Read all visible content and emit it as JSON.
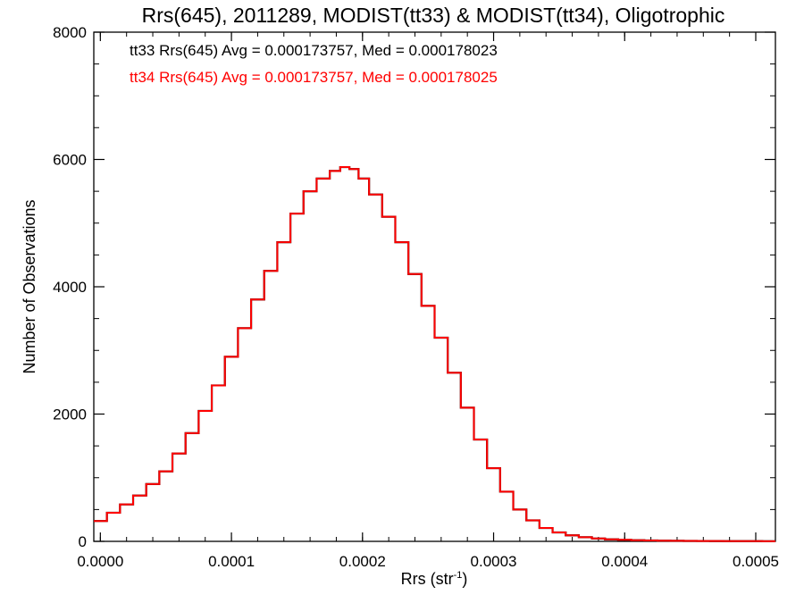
{
  "chart_data": {
    "type": "line",
    "style": "histogram-step",
    "title": "Rrs(645), 2011289, MODIST(tt33) & MODIST(tt34), Oligotrophic",
    "xlabel_main": "Rrs (str",
    "xlabel_sup": "-1",
    "xlabel_close": ")",
    "ylabel": "Number of Observations",
    "xlim": [
      -5e-06,
      0.000515
    ],
    "ylim": [
      0,
      8000
    ],
    "x_ticks": [
      0.0,
      0.0001,
      0.0002,
      0.0003,
      0.0004,
      0.0005
    ],
    "x_tick_labels": [
      "0.0000",
      "0.0001",
      "0.0002",
      "0.0003",
      "0.0004",
      "0.0005"
    ],
    "y_ticks": [
      0,
      2000,
      4000,
      6000,
      8000
    ],
    "y_tick_labels": [
      "0",
      "2000",
      "4000",
      "6000",
      "8000"
    ],
    "annotations": [
      {
        "text": "tt33 Rrs(645) Avg = 0.000173757, Med = 0.000178023",
        "color": "#000000"
      },
      {
        "text": "tt34 Rrs(645) Avg = 0.000173757, Med = 0.000178025",
        "color": "#ff0000"
      }
    ],
    "series": [
      {
        "color": "#000000",
        "x": [
          -5e-06,
          5e-06,
          1.5e-05,
          2.5e-05,
          3.5e-05,
          4.5e-05,
          5.5e-05,
          6.5e-05,
          7.5e-05,
          8.5e-05,
          9.5e-05,
          0.000105,
          0.000115,
          0.000125,
          0.000135,
          0.000145,
          0.000155,
          0.000165,
          0.000175,
          0.000183,
          0.00019,
          0.000197,
          0.000205,
          0.000215,
          0.000225,
          0.000235,
          0.000245,
          0.000255,
          0.000265,
          0.000275,
          0.000285,
          0.000295,
          0.000305,
          0.000315,
          0.000325,
          0.000335,
          0.000345,
          0.000355,
          0.000365,
          0.000375,
          0.000385,
          0.000395,
          0.000405,
          0.000415,
          0.000425,
          0.000435,
          0.000445,
          0.000455,
          0.000465,
          0.000475,
          0.000485,
          0.000495,
          0.000505,
          0.000515
        ],
        "values": [
          320,
          450,
          580,
          720,
          900,
          1100,
          1380,
          1700,
          2050,
          2450,
          2900,
          3350,
          3800,
          4250,
          4700,
          5150,
          5500,
          5700,
          5820,
          5880,
          5850,
          5700,
          5450,
          5100,
          4700,
          4200,
          3700,
          3200,
          2650,
          2100,
          1600,
          1150,
          780,
          500,
          330,
          210,
          140,
          95,
          65,
          45,
          32,
          24,
          18,
          14,
          11,
          9,
          7,
          6,
          5,
          4,
          3,
          3,
          2,
          2
        ]
      },
      {
        "color": "#ff0000",
        "x": [
          -5e-06,
          5e-06,
          1.5e-05,
          2.5e-05,
          3.5e-05,
          4.5e-05,
          5.5e-05,
          6.5e-05,
          7.5e-05,
          8.5e-05,
          9.5e-05,
          0.000105,
          0.000115,
          0.000125,
          0.000135,
          0.000145,
          0.000155,
          0.000165,
          0.000175,
          0.000183,
          0.00019,
          0.000197,
          0.000205,
          0.000215,
          0.000225,
          0.000235,
          0.000245,
          0.000255,
          0.000265,
          0.000275,
          0.000285,
          0.000295,
          0.000305,
          0.000315,
          0.000325,
          0.000335,
          0.000345,
          0.000355,
          0.000365,
          0.000375,
          0.000385,
          0.000395,
          0.000405,
          0.000415,
          0.000425,
          0.000435,
          0.000445,
          0.000455,
          0.000465,
          0.000475,
          0.000485,
          0.000495,
          0.000505,
          0.000515
        ],
        "values": [
          320,
          450,
          580,
          720,
          900,
          1100,
          1380,
          1700,
          2050,
          2450,
          2900,
          3350,
          3800,
          4250,
          4700,
          5150,
          5500,
          5700,
          5820,
          5880,
          5850,
          5700,
          5450,
          5100,
          4700,
          4200,
          3700,
          3200,
          2650,
          2100,
          1600,
          1150,
          780,
          500,
          330,
          210,
          140,
          95,
          65,
          45,
          32,
          24,
          18,
          14,
          11,
          9,
          7,
          6,
          5,
          4,
          3,
          3,
          2,
          2
        ]
      }
    ],
    "grid": false,
    "legend": "top-left"
  }
}
